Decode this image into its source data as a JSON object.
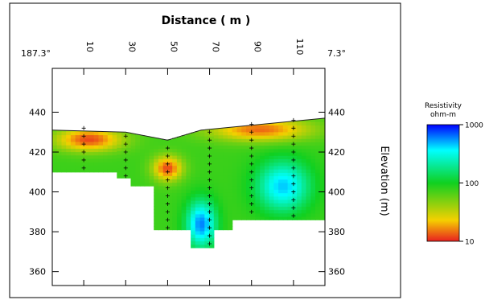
{
  "chart_data": {
    "type": "heatmap",
    "title": "Distance  ( m )",
    "xlabel": "Distance  ( m )",
    "ylabel": "Elevation (m)",
    "x_ticks": [
      "10",
      "30",
      "50",
      "70",
      "90",
      "110"
    ],
    "x_tick_values": [
      10,
      30,
      50,
      70,
      90,
      110
    ],
    "y_ticks": [
      "440",
      "420",
      "400",
      "380",
      "360"
    ],
    "y_tick_values": [
      440,
      420,
      400,
      380,
      360
    ],
    "left_end_label": "187.3°",
    "right_end_label": "7.3°",
    "xlim": [
      -5,
      125
    ],
    "ylim": [
      353,
      462
    ],
    "colorbar": {
      "title_line1": "Resistivity",
      "title_line2": "ohm-m",
      "scale": "log",
      "range": [
        10,
        1000
      ],
      "ticks": [
        "1000",
        "100",
        "10"
      ],
      "tick_values": [
        1000,
        100,
        10
      ],
      "colors": [
        "#e82020",
        "#f5d000",
        "#10d020",
        "#00ffff",
        "#0000ff"
      ]
    },
    "grid": false,
    "electrodes": [
      {
        "x": 10,
        "depths": [
          432,
          428,
          424,
          420,
          416,
          412
        ]
      },
      {
        "x": 30,
        "depths": [
          428,
          424,
          420,
          416,
          412,
          408
        ]
      },
      {
        "x": 50,
        "depths": [
          422,
          418,
          414,
          410,
          406,
          402,
          398,
          394,
          390,
          386,
          382
        ]
      },
      {
        "x": 70,
        "depths": [
          430,
          426,
          422,
          418,
          414,
          410,
          406,
          402,
          398,
          394,
          390,
          386,
          382,
          378,
          374
        ]
      },
      {
        "x": 90,
        "depths": [
          434,
          430,
          426,
          422,
          418,
          414,
          410,
          406,
          402,
          398,
          394,
          390
        ]
      },
      {
        "x": 110,
        "depths": [
          436,
          432,
          428,
          424,
          420,
          416,
          412,
          408,
          404,
          400,
          396,
          392,
          388
        ]
      }
    ],
    "surface_profile": [
      [
        -5,
        431
      ],
      [
        30,
        430
      ],
      [
        50,
        426
      ],
      [
        66,
        431
      ],
      [
        125,
        437
      ]
    ],
    "resistivity_zones": [
      {
        "name": "high-resistivity-top-left",
        "x": [
          -5,
          30
        ],
        "y": [
          422,
          431
        ],
        "value": 12
      },
      {
        "name": "high-resistivity-bottom-center",
        "x": [
          44,
          56
        ],
        "y": [
          407,
          417
        ],
        "value": 12
      },
      {
        "name": "high-resistivity-top-right",
        "x": [
          66,
          122
        ],
        "y": [
          427,
          436
        ],
        "value": 14
      },
      {
        "name": "low-conductivity-channel",
        "x": [
          60,
          72
        ],
        "y": [
          372,
          396
        ],
        "value": 600
      },
      {
        "name": "low-conductivity-right",
        "x": [
          92,
          118
        ],
        "y": [
          390,
          416
        ],
        "value": 450
      }
    ]
  }
}
